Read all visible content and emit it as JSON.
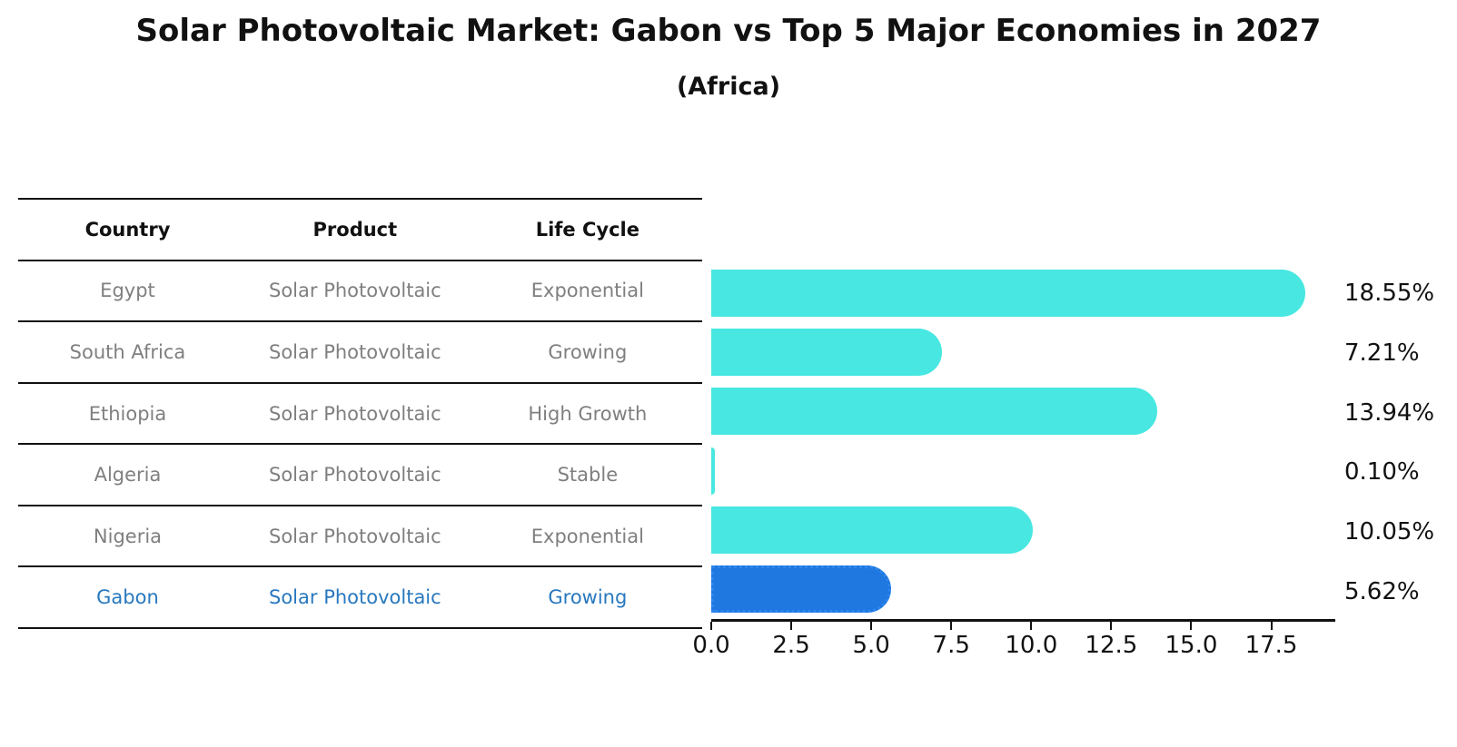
{
  "title": "Solar Photovoltaic Market: Gabon vs Top 5 Major Economies in 2027",
  "subtitle": "(Africa)",
  "table": {
    "headers": [
      "Country",
      "Product",
      "Life Cycle"
    ],
    "rows": [
      {
        "country": "Egypt",
        "product": "Solar Photovoltaic",
        "life_cycle": "Exponential",
        "highlight": false
      },
      {
        "country": "South Africa",
        "product": "Solar Photovoltaic",
        "life_cycle": "Growing",
        "highlight": false
      },
      {
        "country": "Ethiopia",
        "product": "Solar Photovoltaic",
        "life_cycle": "High Growth",
        "highlight": false
      },
      {
        "country": "Algeria",
        "product": "Solar Photovoltaic",
        "life_cycle": "Stable",
        "highlight": false
      },
      {
        "country": "Nigeria",
        "product": "Solar Photovoltaic",
        "life_cycle": "Exponential",
        "highlight": false
      },
      {
        "country": "Gabon",
        "product": "Solar Photovoltaic",
        "life_cycle": "Growing",
        "highlight": true
      }
    ]
  },
  "chart_data": {
    "type": "bar",
    "orientation": "horizontal",
    "title": "Solar Photovoltaic Market: Gabon vs Top 5 Major Economies in 2027",
    "subtitle": "(Africa)",
    "categories": [
      "Egypt",
      "South Africa",
      "Ethiopia",
      "Algeria",
      "Nigeria",
      "Gabon"
    ],
    "values": [
      18.55,
      7.21,
      13.94,
      0.1,
      10.05,
      5.62
    ],
    "value_labels": [
      "18.55%",
      "7.21%",
      "13.94%",
      "0.10%",
      "10.05%",
      "5.62%"
    ],
    "xticks": [
      0.0,
      2.5,
      5.0,
      7.5,
      10.0,
      12.5,
      15.0,
      17.5
    ],
    "xtick_labels": [
      "0.0",
      "2.5",
      "5.0",
      "7.5",
      "10.0",
      "12.5",
      "15.0",
      "17.5"
    ],
    "xlim": [
      0,
      19.5
    ],
    "xlabel": "",
    "ylabel": "",
    "grid": false,
    "legend": false,
    "bar_color": "#48e7e1",
    "highlight_bar_color": "#1e78e0",
    "highlight_index": 5
  },
  "colors": {
    "text_dark": "#111111",
    "text_gray": "#7f7f7f",
    "highlight_text": "#2878be",
    "bar_cyan": "#48e7e1",
    "bar_blue": "#1e78e0",
    "axis": "#111111"
  }
}
